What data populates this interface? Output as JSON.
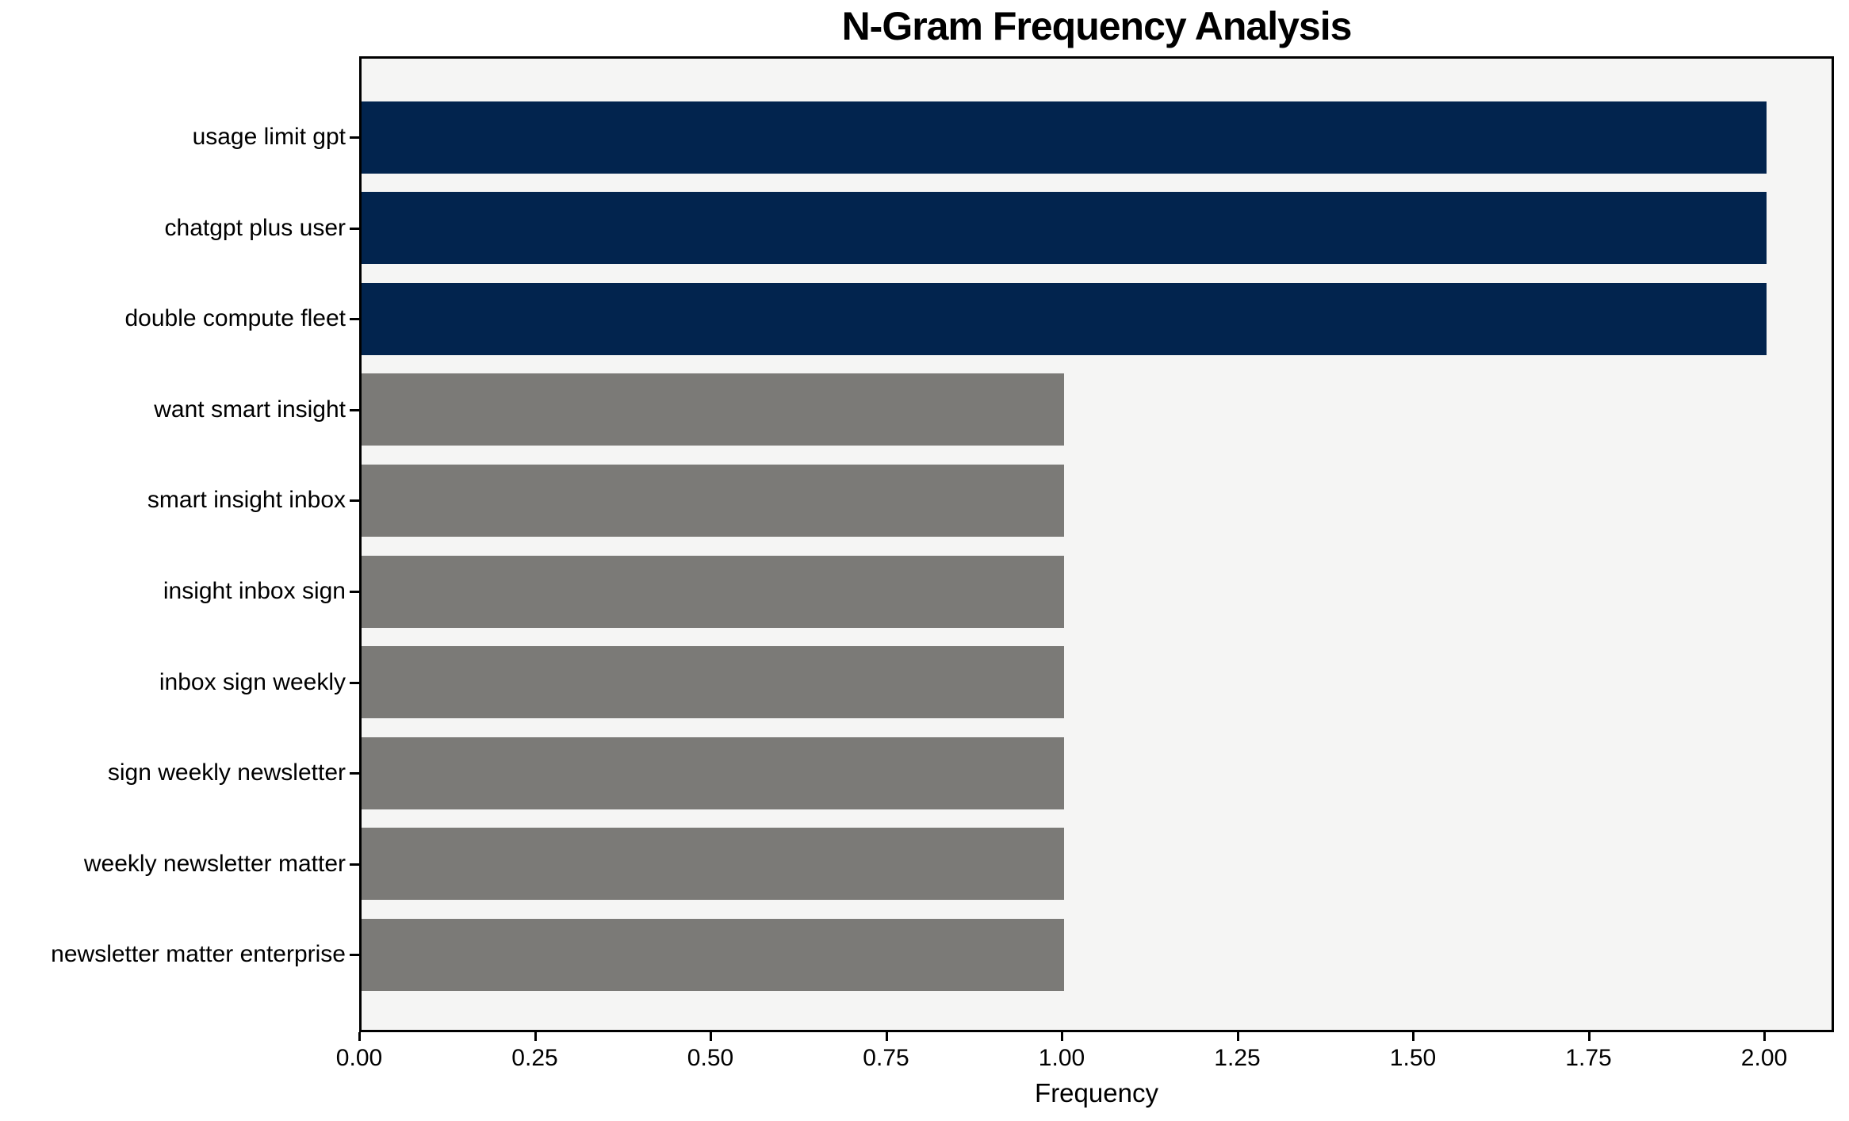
{
  "chart_data": {
    "type": "bar",
    "orientation": "horizontal",
    "title": "N-Gram Frequency Analysis",
    "xlabel": "Frequency",
    "ylabel": "",
    "categories": [
      "usage limit gpt",
      "chatgpt plus user",
      "double compute fleet",
      "want smart insight",
      "smart insight inbox",
      "insight inbox sign",
      "inbox sign weekly",
      "sign weekly newsletter",
      "weekly newsletter matter",
      "newsletter matter enterprise"
    ],
    "values": [
      2,
      2,
      2,
      1,
      1,
      1,
      1,
      1,
      1,
      1
    ],
    "bar_colors": [
      "#02244E",
      "#02244E",
      "#02244E",
      "#7B7A77",
      "#7B7A77",
      "#7B7A77",
      "#7B7A77",
      "#7B7A77",
      "#7B7A77",
      "#7B7A77"
    ],
    "xlim": [
      0,
      2.1
    ],
    "xticks": {
      "values": [
        0,
        0.25,
        0.5,
        0.75,
        1.0,
        1.25,
        1.5,
        1.75,
        2.0
      ],
      "labels": [
        "0.00",
        "0.25",
        "0.50",
        "0.75",
        "1.00",
        "1.25",
        "1.50",
        "1.75",
        "2.00"
      ]
    },
    "grid": false,
    "legend": null,
    "colors": {
      "highlight": "#02244E",
      "default": "#7B7A77",
      "plot_background": "#F5F5F4",
      "axis": "#000000",
      "page_background": "#FFFFFF"
    }
  }
}
